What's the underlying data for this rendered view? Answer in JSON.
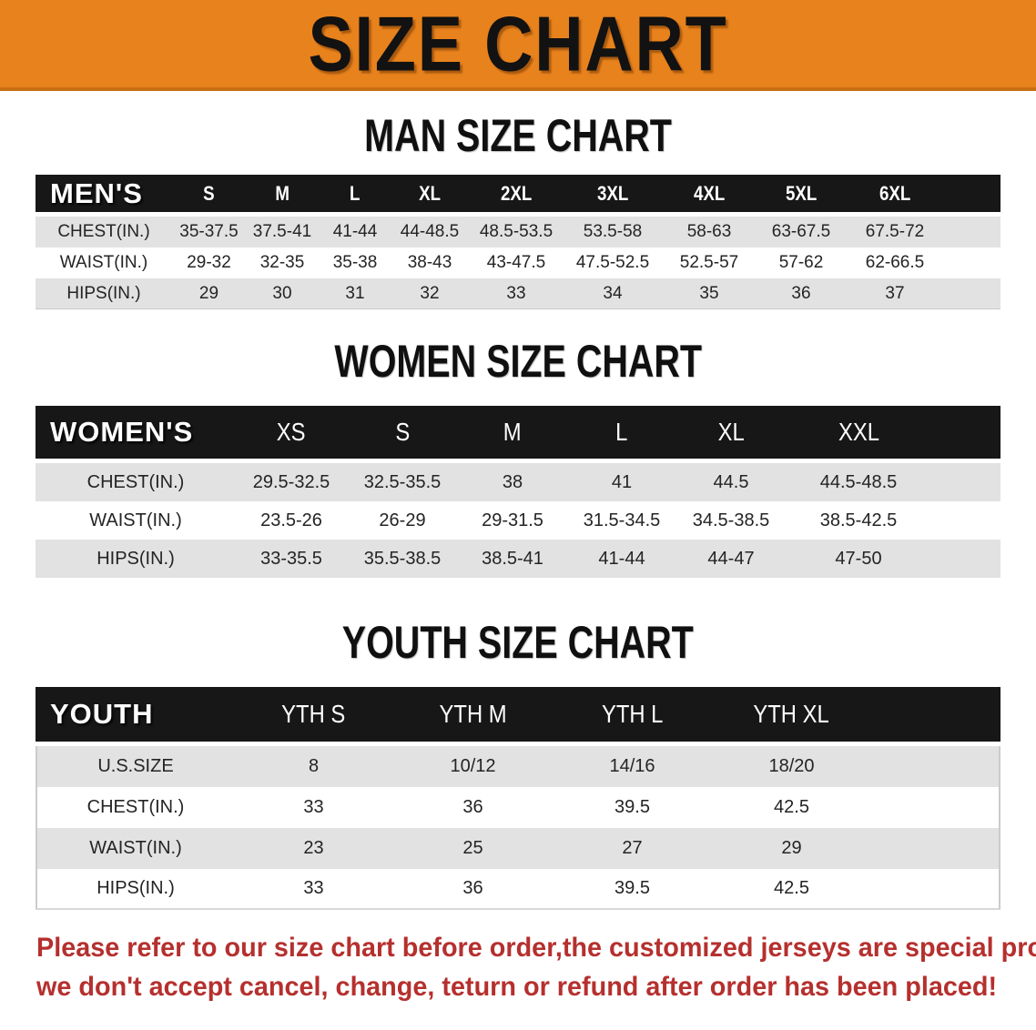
{
  "banner": {
    "title": "SIZE CHART"
  },
  "colors": {
    "banner_bg": "#E8821C",
    "header_bar": "#171717",
    "stripe": "#e2e2e2",
    "note_red": "#b5302e"
  },
  "sections": [
    {
      "heading": "MAN SIZE CHART",
      "table": {
        "label": "MEN'S",
        "columns": [
          "S",
          "M",
          "L",
          "XL",
          "2XL",
          "3XL",
          "4XL",
          "5XL",
          "6XL"
        ],
        "rows": [
          {
            "label": "CHEST(IN.)",
            "values": [
              "35-37.5",
              "37.5-41",
              "41-44",
              "44-48.5",
              "48.5-53.5",
              "53.5-58",
              "58-63",
              "63-67.5",
              "67.5-72"
            ]
          },
          {
            "label": "WAIST(IN.)",
            "values": [
              "29-32",
              "32-35",
              "35-38",
              "38-43",
              "43-47.5",
              "47.5-52.5",
              "52.5-57",
              "57-62",
              "62-66.5"
            ]
          },
          {
            "label": "HIPS(IN.)",
            "values": [
              "29",
              "30",
              "31",
              "32",
              "33",
              "34",
              "35",
              "36",
              "37"
            ]
          }
        ]
      }
    },
    {
      "heading": "WOMEN SIZE CHART",
      "table": {
        "label": "WOMEN'S",
        "columns": [
          "XS",
          "S",
          "M",
          "L",
          "XL",
          "XXL"
        ],
        "rows": [
          {
            "label": "CHEST(IN.)",
            "values": [
              "29.5-32.5",
              "32.5-35.5",
              "38",
              "41",
              "44.5",
              "44.5-48.5"
            ]
          },
          {
            "label": "WAIST(IN.)",
            "values": [
              "23.5-26",
              "26-29",
              "29-31.5",
              "31.5-34.5",
              "34.5-38.5",
              "38.5-42.5"
            ]
          },
          {
            "label": "HIPS(IN.)",
            "values": [
              "33-35.5",
              "35.5-38.5",
              "38.5-41",
              "41-44",
              "44-47",
              "47-50"
            ]
          }
        ]
      }
    },
    {
      "heading": "YOUTH SIZE CHART",
      "table": {
        "label": "YOUTH",
        "columns": [
          "YTH S",
          "YTH M",
          "YTH L",
          "YTH XL"
        ],
        "rows": [
          {
            "label": "U.S.SIZE",
            "values": [
              "8",
              "10/12",
              "14/16",
              "18/20"
            ]
          },
          {
            "label": "CHEST(IN.)",
            "values": [
              "33",
              "36",
              "39.5",
              "42.5"
            ]
          },
          {
            "label": "WAIST(IN.)",
            "values": [
              "23",
              "25",
              "27",
              "29"
            ]
          },
          {
            "label": "HIPS(IN.)",
            "values": [
              "33",
              "36",
              "39.5",
              "42.5"
            ]
          }
        ]
      }
    }
  ],
  "note": {
    "line1": "Please refer to our size chart before order,the customized jerseys are special products,",
    "line2": "we don't accept cancel, change, teturn or refund after order has been placed!"
  }
}
